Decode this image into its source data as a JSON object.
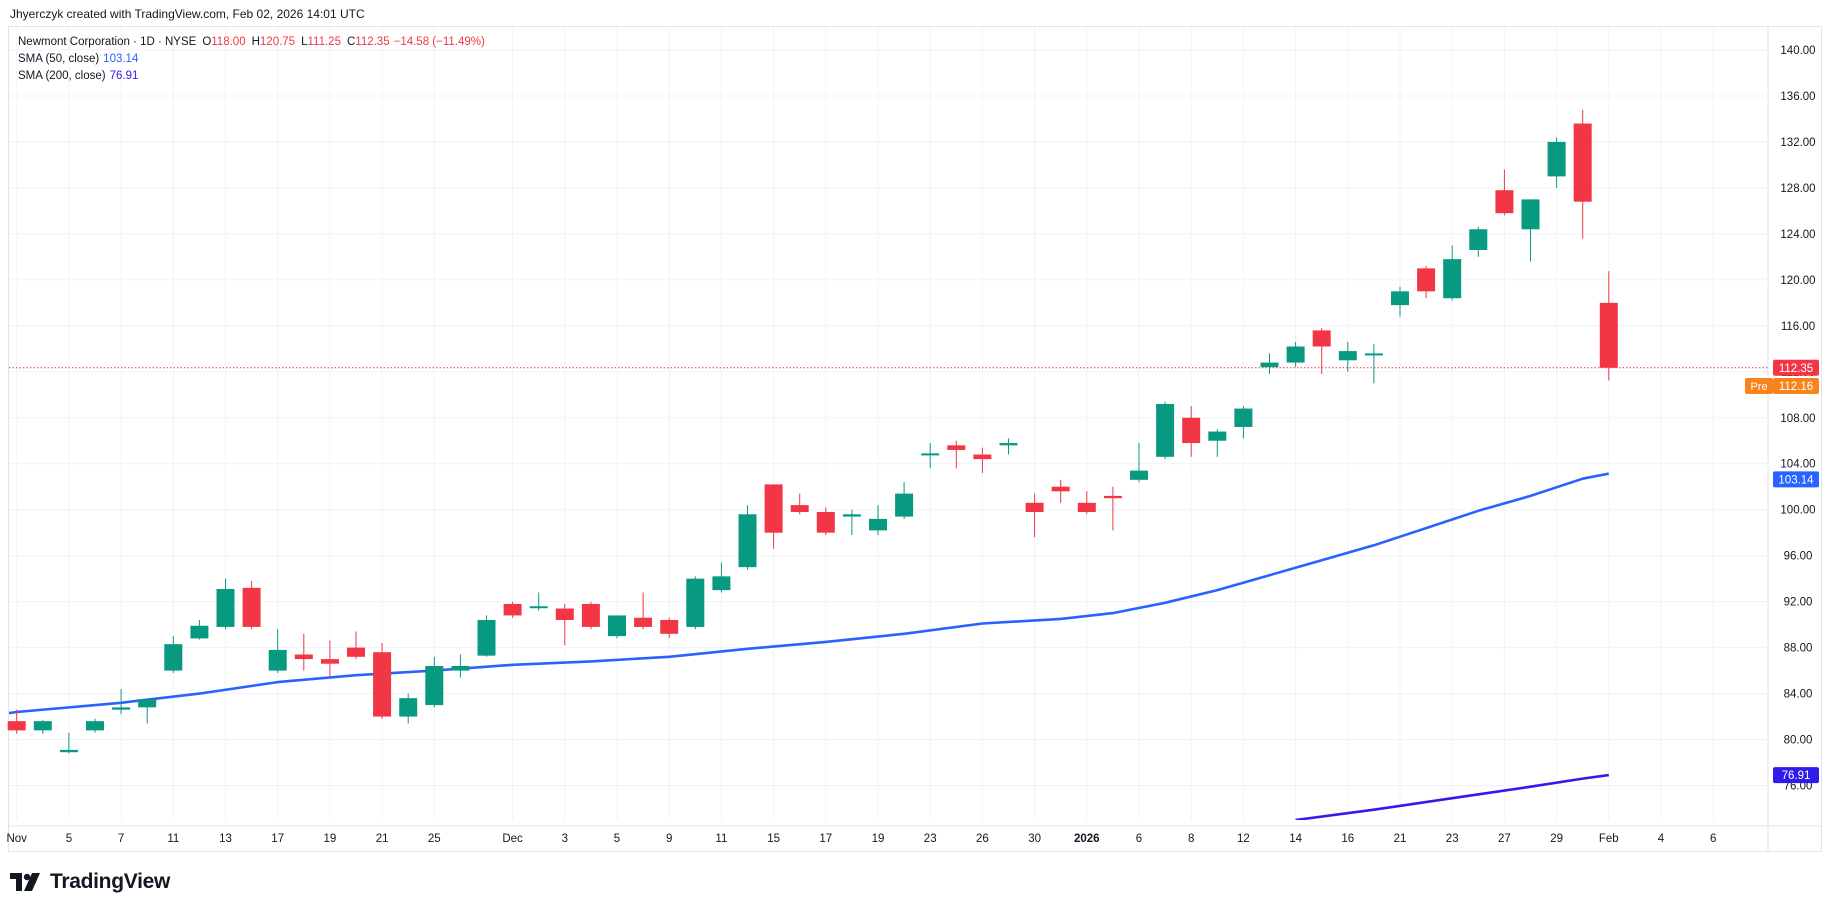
{
  "header": {
    "credit": "Jhyerczyk created with TradingView.com, Feb 02, 2026 14:01 UTC"
  },
  "legend": {
    "symbol": "Newmont Corporation · 1D · NYSE",
    "open_label": "O",
    "open": "118.00",
    "high_label": "H",
    "high": "120.75",
    "low_label": "L",
    "low": "111.25",
    "close_label": "C",
    "close": "112.35",
    "change": "−14.58 (−11.49%)",
    "sma50_label": "SMA (50, close)",
    "sma50_value": "103.14",
    "sma200_label": "SMA (200, close)",
    "sma200_value": "76.91"
  },
  "footer": {
    "brand": "TradingView"
  },
  "colors": {
    "up": "#089981",
    "down": "#f23645",
    "sma50": "#2962ff",
    "sma200": "#311bea",
    "pre": "#f7841d",
    "grid": "#f0f3fa"
  },
  "chart_data": {
    "type": "candlestick",
    "ylim": [
      73,
      142
    ],
    "y_ticks": [
      "76.00",
      "80.00",
      "84.00",
      "88.00",
      "92.00",
      "96.00",
      "100.00",
      "104.00",
      "108.00",
      "112.00",
      "116.00",
      "120.00",
      "124.00",
      "128.00",
      "132.00",
      "136.00",
      "140.00"
    ],
    "x_ticks": [
      {
        "label": "Nov",
        "i": 0
      },
      {
        "label": "5",
        "i": 2
      },
      {
        "label": "7",
        "i": 4
      },
      {
        "label": "11",
        "i": 6
      },
      {
        "label": "13",
        "i": 8
      },
      {
        "label": "17",
        "i": 10
      },
      {
        "label": "19",
        "i": 12
      },
      {
        "label": "21",
        "i": 14
      },
      {
        "label": "25",
        "i": 16
      },
      {
        "label": "Dec",
        "i": 19
      },
      {
        "label": "3",
        "i": 21
      },
      {
        "label": "5",
        "i": 23
      },
      {
        "label": "9",
        "i": 25
      },
      {
        "label": "11",
        "i": 27
      },
      {
        "label": "15",
        "i": 29
      },
      {
        "label": "17",
        "i": 31
      },
      {
        "label": "19",
        "i": 33
      },
      {
        "label": "23",
        "i": 35
      },
      {
        "label": "26",
        "i": 37
      },
      {
        "label": "30",
        "i": 39
      },
      {
        "label": "2026",
        "i": 41,
        "bold": true
      },
      {
        "label": "6",
        "i": 43
      },
      {
        "label": "8",
        "i": 45
      },
      {
        "label": "12",
        "i": 47
      },
      {
        "label": "14",
        "i": 49
      },
      {
        "label": "16",
        "i": 51
      },
      {
        "label": "21",
        "i": 53
      },
      {
        "label": "23",
        "i": 55
      },
      {
        "label": "27",
        "i": 57
      },
      {
        "label": "29",
        "i": 59
      },
      {
        "label": "Feb",
        "i": 61
      },
      {
        "label": "4",
        "i": 63
      },
      {
        "label": "6",
        "i": 65
      }
    ],
    "candles": [
      [
        81.6,
        82.6,
        80.5,
        80.8
      ],
      [
        80.8,
        81.7,
        80.5,
        81.6
      ],
      [
        78.9,
        80.6,
        78.8,
        79.1
      ],
      [
        80.8,
        81.8,
        80.6,
        81.6
      ],
      [
        82.6,
        84.4,
        82.2,
        82.8
      ],
      [
        82.8,
        83.6,
        81.4,
        83.5
      ],
      [
        86.0,
        89.0,
        85.8,
        88.3
      ],
      [
        88.8,
        90.4,
        88.7,
        89.9
      ],
      [
        89.8,
        94.0,
        89.6,
        93.1
      ],
      [
        93.2,
        93.8,
        89.6,
        89.8
      ],
      [
        86.0,
        89.6,
        85.8,
        87.8
      ],
      [
        87.4,
        89.2,
        86.0,
        87.0
      ],
      [
        87.0,
        88.6,
        85.4,
        86.6
      ],
      [
        88.0,
        89.4,
        87.0,
        87.2
      ],
      [
        87.6,
        88.4,
        81.8,
        82.0
      ],
      [
        82.0,
        84.0,
        81.4,
        83.6
      ],
      [
        83.0,
        87.2,
        82.8,
        86.4
      ],
      [
        86.0,
        87.4,
        85.4,
        86.4
      ],
      [
        87.3,
        90.8,
        87.2,
        90.4
      ],
      [
        91.8,
        92.0,
        90.6,
        90.8
      ],
      [
        91.6,
        92.8,
        91.2,
        91.6
      ],
      [
        91.4,
        91.8,
        88.2,
        90.4
      ],
      [
        91.8,
        92.0,
        89.6,
        89.8
      ],
      [
        89.0,
        90.8,
        88.8,
        90.8
      ],
      [
        90.6,
        92.8,
        89.6,
        89.8
      ],
      [
        90.4,
        90.6,
        88.8,
        89.2
      ],
      [
        89.8,
        94.2,
        89.6,
        94.0
      ],
      [
        93.0,
        95.4,
        92.8,
        94.2
      ],
      [
        95.0,
        100.4,
        94.8,
        99.6
      ],
      [
        102.2,
        102.2,
        96.6,
        98.0
      ],
      [
        100.4,
        101.4,
        99.6,
        99.8
      ],
      [
        99.8,
        100.2,
        97.8,
        98.0
      ],
      [
        99.4,
        100.0,
        97.8,
        99.6
      ],
      [
        98.2,
        100.4,
        97.8,
        99.2
      ],
      [
        99.4,
        102.4,
        99.2,
        101.4
      ],
      [
        104.8,
        105.8,
        103.6,
        104.9
      ],
      [
        105.6,
        106.0,
        103.6,
        105.2
      ],
      [
        104.8,
        105.4,
        103.2,
        104.4
      ],
      [
        105.6,
        106.2,
        104.8,
        105.8
      ],
      [
        100.6,
        101.4,
        97.6,
        99.8
      ],
      [
        102.0,
        102.6,
        100.6,
        101.6
      ],
      [
        100.6,
        101.6,
        99.6,
        99.8
      ],
      [
        101.2,
        102.0,
        98.2,
        101.0
      ],
      [
        102.6,
        105.8,
        102.4,
        103.4
      ],
      [
        104.6,
        109.4,
        104.4,
        109.2
      ],
      [
        108.0,
        109.0,
        104.6,
        105.8
      ],
      [
        106.0,
        107.0,
        104.6,
        106.8
      ],
      [
        107.2,
        109.0,
        106.2,
        108.8
      ],
      [
        112.4,
        113.6,
        111.8,
        112.8
      ],
      [
        112.8,
        114.6,
        112.4,
        114.2
      ],
      [
        115.6,
        115.8,
        111.8,
        114.2
      ],
      [
        113.0,
        114.6,
        112.0,
        113.8
      ],
      [
        113.6,
        114.4,
        111.0,
        113.6
      ],
      [
        117.8,
        119.4,
        116.8,
        119.0
      ],
      [
        121.0,
        121.2,
        118.4,
        119.0
      ],
      [
        118.4,
        123.0,
        118.2,
        121.8
      ],
      [
        122.6,
        124.6,
        122.0,
        124.4
      ],
      [
        127.8,
        129.6,
        125.6,
        125.8
      ],
      [
        124.4,
        127.0,
        121.6,
        127.0
      ],
      [
        129.0,
        132.4,
        128.0,
        132.0
      ],
      [
        133.6,
        134.8,
        123.6,
        126.8
      ],
      [
        118.0,
        120.75,
        111.25,
        112.35
      ]
    ],
    "sma50": [
      [
        0,
        82.4
      ],
      [
        4,
        83.2
      ],
      [
        7,
        84.0
      ],
      [
        10,
        85.0
      ],
      [
        13,
        85.6
      ],
      [
        16,
        86.0
      ],
      [
        19,
        86.5
      ],
      [
        22,
        86.8
      ],
      [
        25,
        87.2
      ],
      [
        28,
        87.9
      ],
      [
        31,
        88.5
      ],
      [
        34,
        89.2
      ],
      [
        37,
        90.1
      ],
      [
        40,
        90.5
      ],
      [
        42,
        91.0
      ],
      [
        44,
        91.9
      ],
      [
        46,
        93.0
      ],
      [
        48,
        94.3
      ],
      [
        50,
        95.6
      ],
      [
        52,
        96.9
      ],
      [
        54,
        98.4
      ],
      [
        56,
        99.9
      ],
      [
        58,
        101.2
      ],
      [
        60,
        102.7
      ],
      [
        61,
        103.14
      ]
    ],
    "sma200": [
      [
        49,
        73.0
      ],
      [
        52,
        73.9
      ],
      [
        55,
        74.9
      ],
      [
        58,
        75.9
      ],
      [
        60,
        76.6
      ],
      [
        61,
        76.91
      ]
    ],
    "last_close": {
      "value": 112.35,
      "label": "112.35"
    },
    "premarket": {
      "value": 112.16,
      "label": "112.16",
      "tag": "Pre"
    },
    "sma50_last": {
      "value": 103.14,
      "label": "103.14"
    },
    "sma200_last": {
      "value": 76.91,
      "label": "76.91"
    }
  }
}
